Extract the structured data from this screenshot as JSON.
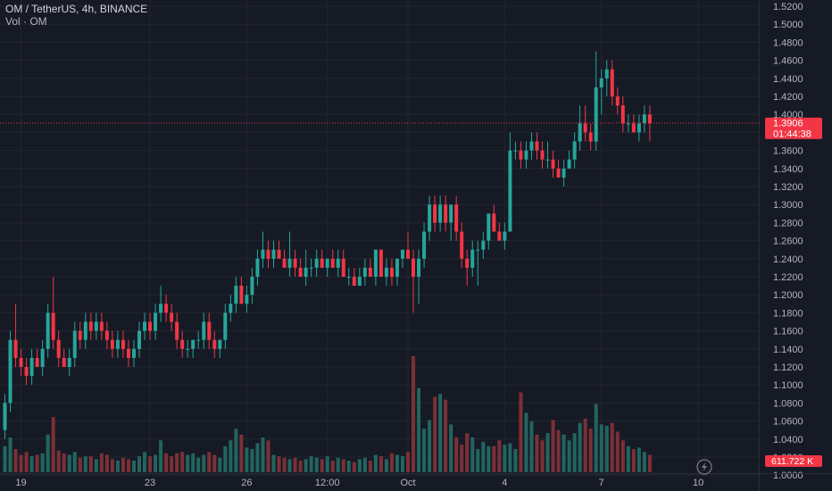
{
  "header": {
    "symbol_line": "OM / TetherUS, 4h, BINANCE",
    "volume_line": "Vol · OM"
  },
  "price_label": {
    "value": "1.3906",
    "countdown": "01:44:38",
    "color": "#f23645"
  },
  "volume_label": {
    "value": "611.722 K"
  },
  "colors": {
    "up": "#26a69a",
    "down": "#f23645",
    "up_volume": "#22655f",
    "down_volume": "#7c3036",
    "background": "#161a25",
    "grid": "#222631",
    "axis_text": "#b2b5be"
  },
  "chart_data": {
    "type": "candlestick",
    "y_axis_ticks": [
      "1.5200",
      "1.5000",
      "1.4800",
      "1.4600",
      "1.4400",
      "1.4200",
      "1.4000",
      "1.3800",
      "1.3600",
      "1.3400",
      "1.3200",
      "1.3000",
      "1.2800",
      "1.2600",
      "1.2400",
      "1.2200",
      "1.2000",
      "1.1800",
      "1.1600",
      "1.1400",
      "1.1200",
      "1.1000",
      "1.0800",
      "1.0600",
      "1.0400",
      "1.0200",
      "1.0000"
    ],
    "ylim": [
      1.0,
      1.52
    ],
    "x_axis_ticks": [
      {
        "label": "19",
        "index": 3
      },
      {
        "label": "23",
        "index": 27
      },
      {
        "label": "26",
        "index": 45
      },
      {
        "label": "12:00",
        "index": 60
      },
      {
        "label": "Oct",
        "index": 75
      },
      {
        "label": "4",
        "index": 93
      },
      {
        "label": "7",
        "index": 111
      },
      {
        "label": "10",
        "index": 129
      }
    ],
    "current_price": 1.3906,
    "grid": true,
    "candles": [
      [
        1.05,
        1.09,
        1.04,
        1.08
      ],
      [
        1.08,
        1.16,
        1.07,
        1.15
      ],
      [
        1.15,
        1.19,
        1.12,
        1.13
      ],
      [
        1.13,
        1.14,
        1.11,
        1.12
      ],
      [
        1.12,
        1.13,
        1.1,
        1.11
      ],
      [
        1.11,
        1.14,
        1.1,
        1.13
      ],
      [
        1.13,
        1.14,
        1.12,
        1.12
      ],
      [
        1.12,
        1.15,
        1.11,
        1.14
      ],
      [
        1.14,
        1.19,
        1.13,
        1.18
      ],
      [
        1.18,
        1.22,
        1.14,
        1.15
      ],
      [
        1.15,
        1.16,
        1.12,
        1.13
      ],
      [
        1.13,
        1.14,
        1.12,
        1.12
      ],
      [
        1.12,
        1.14,
        1.11,
        1.13
      ],
      [
        1.13,
        1.17,
        1.12,
        1.16
      ],
      [
        1.16,
        1.17,
        1.14,
        1.15
      ],
      [
        1.15,
        1.18,
        1.14,
        1.17
      ],
      [
        1.17,
        1.18,
        1.15,
        1.16
      ],
      [
        1.16,
        1.18,
        1.15,
        1.17
      ],
      [
        1.17,
        1.18,
        1.15,
        1.16
      ],
      [
        1.16,
        1.17,
        1.14,
        1.15
      ],
      [
        1.15,
        1.16,
        1.13,
        1.14
      ],
      [
        1.14,
        1.16,
        1.13,
        1.15
      ],
      [
        1.15,
        1.16,
        1.13,
        1.14
      ],
      [
        1.14,
        1.15,
        1.12,
        1.13
      ],
      [
        1.13,
        1.15,
        1.12,
        1.14
      ],
      [
        1.14,
        1.17,
        1.13,
        1.16
      ],
      [
        1.16,
        1.18,
        1.15,
        1.17
      ],
      [
        1.17,
        1.18,
        1.15,
        1.16
      ],
      [
        1.16,
        1.19,
        1.15,
        1.18
      ],
      [
        1.18,
        1.21,
        1.17,
        1.19
      ],
      [
        1.19,
        1.2,
        1.17,
        1.18
      ],
      [
        1.18,
        1.19,
        1.16,
        1.17
      ],
      [
        1.17,
        1.18,
        1.14,
        1.15
      ],
      [
        1.15,
        1.16,
        1.13,
        1.14
      ],
      [
        1.14,
        1.15,
        1.13,
        1.14
      ],
      [
        1.14,
        1.15,
        1.13,
        1.15
      ],
      [
        1.15,
        1.16,
        1.14,
        1.15
      ],
      [
        1.15,
        1.18,
        1.14,
        1.17
      ],
      [
        1.17,
        1.18,
        1.14,
        1.15
      ],
      [
        1.15,
        1.16,
        1.13,
        1.14
      ],
      [
        1.14,
        1.15,
        1.13,
        1.15
      ],
      [
        1.15,
        1.19,
        1.14,
        1.18
      ],
      [
        1.18,
        1.2,
        1.17,
        1.19
      ],
      [
        1.19,
        1.22,
        1.18,
        1.21
      ],
      [
        1.21,
        1.22,
        1.19,
        1.19
      ],
      [
        1.19,
        1.21,
        1.18,
        1.2
      ],
      [
        1.2,
        1.23,
        1.19,
        1.22
      ],
      [
        1.22,
        1.25,
        1.21,
        1.24
      ],
      [
        1.24,
        1.27,
        1.23,
        1.25
      ],
      [
        1.25,
        1.26,
        1.23,
        1.24
      ],
      [
        1.24,
        1.26,
        1.23,
        1.25
      ],
      [
        1.25,
        1.26,
        1.24,
        1.24
      ],
      [
        1.24,
        1.25,
        1.23,
        1.23
      ],
      [
        1.23,
        1.27,
        1.22,
        1.24
      ],
      [
        1.24,
        1.25,
        1.22,
        1.23
      ],
      [
        1.23,
        1.24,
        1.22,
        1.22
      ],
      [
        1.22,
        1.25,
        1.21,
        1.23
      ],
      [
        1.23,
        1.24,
        1.22,
        1.23
      ],
      [
        1.23,
        1.25,
        1.22,
        1.24
      ],
      [
        1.24,
        1.25,
        1.23,
        1.23
      ],
      [
        1.23,
        1.24,
        1.22,
        1.24
      ],
      [
        1.24,
        1.25,
        1.23,
        1.23
      ],
      [
        1.23,
        1.25,
        1.22,
        1.24
      ],
      [
        1.24,
        1.25,
        1.22,
        1.22
      ],
      [
        1.22,
        1.23,
        1.21,
        1.22
      ],
      [
        1.22,
        1.23,
        1.21,
        1.21
      ],
      [
        1.21,
        1.23,
        1.21,
        1.22
      ],
      [
        1.22,
        1.24,
        1.21,
        1.23
      ],
      [
        1.23,
        1.24,
        1.22,
        1.22
      ],
      [
        1.22,
        1.25,
        1.21,
        1.25
      ],
      [
        1.25,
        1.25,
        1.22,
        1.22
      ],
      [
        1.22,
        1.24,
        1.21,
        1.23
      ],
      [
        1.23,
        1.24,
        1.21,
        1.22
      ],
      [
        1.22,
        1.24,
        1.21,
        1.24
      ],
      [
        1.24,
        1.25,
        1.23,
        1.25
      ],
      [
        1.25,
        1.27,
        1.24,
        1.24
      ],
      [
        1.24,
        1.25,
        1.18,
        1.22
      ],
      [
        1.22,
        1.25,
        1.19,
        1.24
      ],
      [
        1.24,
        1.28,
        1.23,
        1.27
      ],
      [
        1.27,
        1.31,
        1.26,
        1.3
      ],
      [
        1.3,
        1.31,
        1.27,
        1.28
      ],
      [
        1.28,
        1.31,
        1.27,
        1.3
      ],
      [
        1.3,
        1.31,
        1.27,
        1.28
      ],
      [
        1.28,
        1.3,
        1.26,
        1.3
      ],
      [
        1.3,
        1.31,
        1.26,
        1.27
      ],
      [
        1.27,
        1.28,
        1.23,
        1.24
      ],
      [
        1.24,
        1.25,
        1.21,
        1.23
      ],
      [
        1.23,
        1.26,
        1.22,
        1.25
      ],
      [
        1.25,
        1.26,
        1.21,
        1.25
      ],
      [
        1.25,
        1.27,
        1.24,
        1.26
      ],
      [
        1.26,
        1.29,
        1.25,
        1.29
      ],
      [
        1.29,
        1.3,
        1.27,
        1.27
      ],
      [
        1.27,
        1.28,
        1.26,
        1.26
      ],
      [
        1.26,
        1.28,
        1.25,
        1.27
      ],
      [
        1.27,
        1.38,
        1.27,
        1.36
      ],
      [
        1.36,
        1.37,
        1.35,
        1.36
      ],
      [
        1.36,
        1.37,
        1.34,
        1.35
      ],
      [
        1.35,
        1.37,
        1.34,
        1.36
      ],
      [
        1.36,
        1.38,
        1.35,
        1.37
      ],
      [
        1.37,
        1.38,
        1.35,
        1.36
      ],
      [
        1.36,
        1.37,
        1.34,
        1.35
      ],
      [
        1.35,
        1.37,
        1.34,
        1.35
      ],
      [
        1.35,
        1.36,
        1.33,
        1.34
      ],
      [
        1.34,
        1.35,
        1.33,
        1.33
      ],
      [
        1.33,
        1.35,
        1.32,
        1.34
      ],
      [
        1.34,
        1.36,
        1.34,
        1.35
      ],
      [
        1.35,
        1.38,
        1.34,
        1.37
      ],
      [
        1.37,
        1.41,
        1.36,
        1.39
      ],
      [
        1.39,
        1.41,
        1.37,
        1.38
      ],
      [
        1.38,
        1.39,
        1.36,
        1.37
      ],
      [
        1.37,
        1.47,
        1.36,
        1.43
      ],
      [
        1.43,
        1.45,
        1.4,
        1.44
      ],
      [
        1.44,
        1.46,
        1.42,
        1.45
      ],
      [
        1.45,
        1.46,
        1.41,
        1.42
      ],
      [
        1.42,
        1.43,
        1.4,
        1.41
      ],
      [
        1.41,
        1.42,
        1.38,
        1.39
      ],
      [
        1.39,
        1.4,
        1.38,
        1.39
      ],
      [
        1.39,
        1.4,
        1.38,
        1.38
      ],
      [
        1.38,
        1.4,
        1.37,
        1.39
      ],
      [
        1.39,
        1.41,
        1.38,
        1.4
      ],
      [
        1.4,
        1.41,
        1.37,
        1.39
      ]
    ],
    "volumes": [
      18,
      24,
      16,
      12,
      14,
      11,
      12,
      13,
      26,
      38,
      15,
      13,
      12,
      14,
      10,
      11,
      11,
      9,
      13,
      12,
      9,
      8,
      10,
      9,
      8,
      11,
      14,
      11,
      12,
      22,
      13,
      11,
      13,
      14,
      12,
      13,
      10,
      12,
      14,
      12,
      10,
      18,
      22,
      30,
      26,
      17,
      16,
      20,
      24,
      22,
      12,
      11,
      10,
      9,
      10,
      8,
      9,
      11,
      10,
      9,
      11,
      8,
      10,
      9,
      8,
      7,
      9,
      10,
      8,
      12,
      11,
      9,
      13,
      12,
      11,
      14,
      80,
      58,
      30,
      36,
      52,
      54,
      50,
      33,
      24,
      19,
      27,
      24,
      16,
      21,
      18,
      18,
      22,
      19,
      20,
      16,
      55,
      41,
      35,
      26,
      22,
      27,
      36,
      29,
      26,
      22,
      27,
      34,
      37,
      30,
      47,
      33,
      32,
      34,
      28,
      22,
      18,
      16,
      17,
      14,
      12
    ]
  }
}
